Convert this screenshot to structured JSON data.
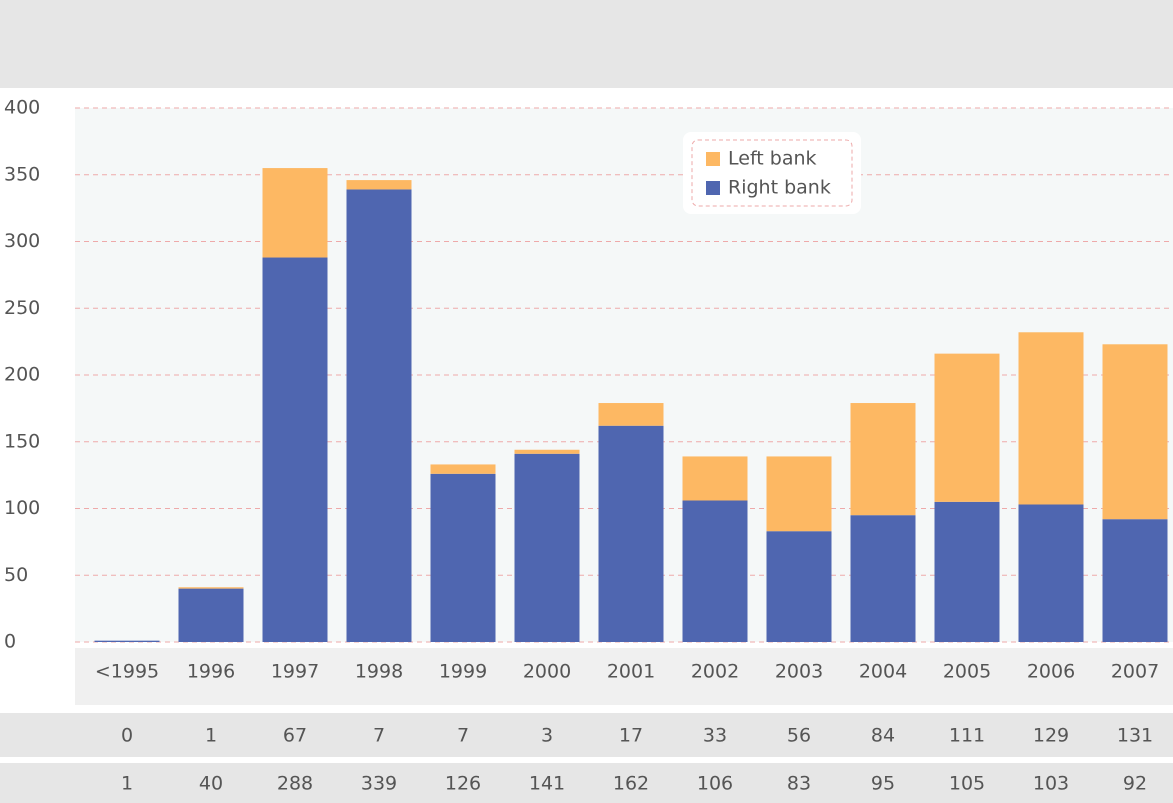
{
  "chart_data": {
    "type": "bar",
    "stacked": true,
    "categories": [
      "<1995",
      "1996",
      "1997",
      "1998",
      "1999",
      "2000",
      "2001",
      "2002",
      "2003",
      "2004",
      "2005",
      "2006",
      "2007"
    ],
    "series": [
      {
        "name": "Left bank",
        "color": "#fdb863",
        "values": [
          0,
          1,
          67,
          7,
          7,
          3,
          17,
          33,
          56,
          84,
          111,
          129,
          131
        ]
      },
      {
        "name": "Right bank",
        "color": "#4f66b0",
        "values": [
          1,
          40,
          288,
          339,
          126,
          141,
          162,
          106,
          83,
          95,
          105,
          103,
          92
        ]
      }
    ],
    "ylim": [
      0,
      400
    ],
    "yticks": [
      0,
      50,
      100,
      150,
      200,
      250,
      300,
      350,
      400
    ],
    "grid": true
  }
}
